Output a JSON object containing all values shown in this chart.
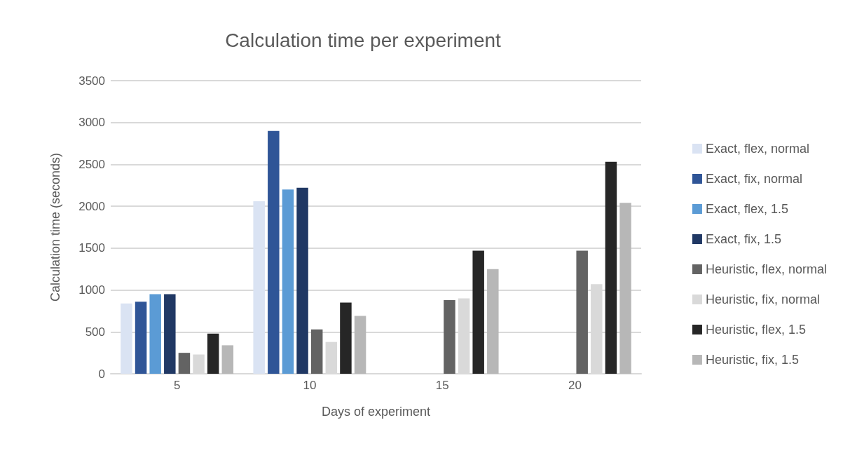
{
  "chart_data": {
    "type": "bar",
    "title": "Calculation time per experiment",
    "xlabel": "Days of experiment",
    "ylabel": "Calculation time (seconds)",
    "categories": [
      "5",
      "10",
      "15",
      "20"
    ],
    "series": [
      {
        "name": "Exact, flex, normal",
        "color": "#dae3f3",
        "values": [
          840,
          2060,
          null,
          null
        ]
      },
      {
        "name": "Exact, fix, normal",
        "color": "#2f5597",
        "values": [
          860,
          2900,
          null,
          null
        ]
      },
      {
        "name": "Exact, flex, 1.5",
        "color": "#5b9bd5",
        "values": [
          950,
          2200,
          null,
          null
        ]
      },
      {
        "name": "Exact, fix, 1.5",
        "color": "#203864",
        "values": [
          950,
          2220,
          null,
          null
        ]
      },
      {
        "name": "Heuristic, flex, normal",
        "color": "#636363",
        "values": [
          250,
          530,
          880,
          1470
        ]
      },
      {
        "name": "Heuristic, fix, normal",
        "color": "#d9d9d9",
        "values": [
          230,
          380,
          900,
          1070
        ]
      },
      {
        "name": "Heuristic, flex, 1.5",
        "color": "#262626",
        "values": [
          480,
          850,
          1470,
          2530
        ]
      },
      {
        "name": "Heuristic, fix, 1.5",
        "color": "#b7b7b7",
        "values": [
          340,
          690,
          1250,
          2040
        ]
      }
    ],
    "ylim": [
      0,
      3500
    ],
    "yticks": [
      0,
      500,
      1000,
      1500,
      2000,
      2500,
      3000,
      3500
    ],
    "grid": "y",
    "legend": "right"
  }
}
